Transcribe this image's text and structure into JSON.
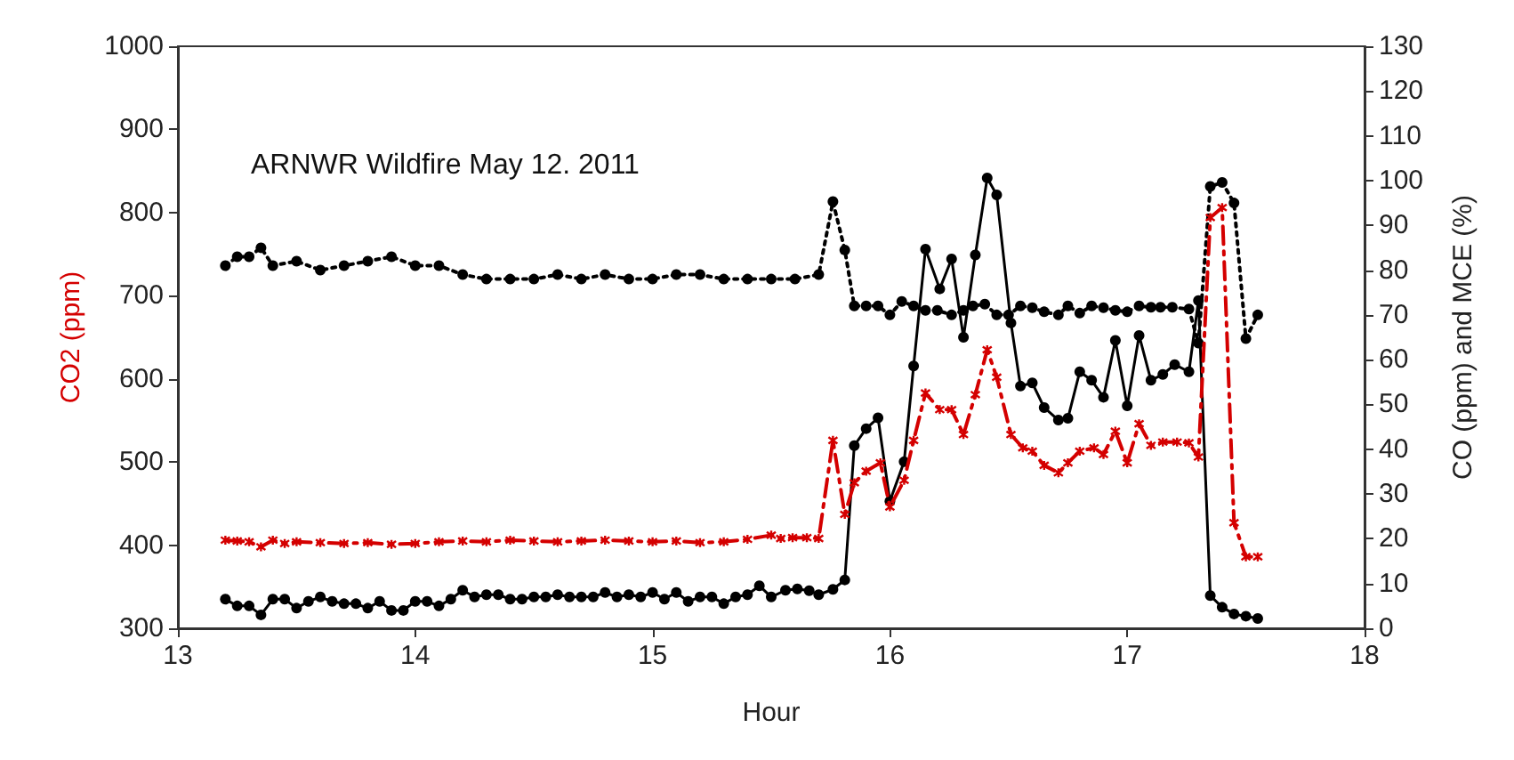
{
  "chart_data": {
    "type": "line",
    "title": "ARNWR Wildfire May 12. 2011",
    "xlabel": "Hour",
    "ylabel": "CO2 (ppm)",
    "y2label": "CO (ppm) and MCE (%)",
    "xlim": [
      13,
      18
    ],
    "xticks": [
      13,
      14,
      15,
      16,
      17,
      18
    ],
    "ylim": [
      300,
      1000
    ],
    "yticks": [
      300,
      400,
      500,
      600,
      700,
      800,
      900,
      1000
    ],
    "y2lim": [
      0,
      130
    ],
    "y2ticks": [
      0,
      10,
      20,
      30,
      40,
      50,
      60,
      70,
      80,
      90,
      100,
      110,
      120,
      130
    ],
    "grid": false,
    "series": [
      {
        "color": "#d40000",
        "marker": "cross",
        "line_style": "dashed",
        "x": [
          13.2,
          13.25,
          13.3,
          13.35,
          13.4,
          13.45,
          13.5,
          13.6,
          13.7,
          13.8,
          13.9,
          14.0,
          14.1,
          14.2,
          14.3,
          14.4,
          14.5,
          14.6,
          14.7,
          14.8,
          14.9,
          15.0,
          15.1,
          15.2,
          15.3,
          15.4,
          15.5,
          15.54,
          15.59,
          15.65,
          15.7,
          15.76,
          15.81,
          15.85,
          15.9,
          15.96,
          16.0,
          16.06,
          16.1,
          16.15,
          16.21,
          16.26,
          16.31,
          16.36,
          16.41,
          16.45,
          16.51,
          16.56,
          16.6,
          16.65,
          16.71,
          16.75,
          16.8,
          16.86,
          16.9,
          16.95,
          17.0,
          17.05,
          17.1,
          17.15,
          17.21,
          17.26,
          17.3,
          17.35,
          17.4,
          17.45,
          17.5,
          17.55
        ],
        "values": [
          406,
          405,
          404,
          398,
          406,
          402,
          404,
          403,
          402,
          403,
          401,
          402,
          404,
          405,
          404,
          406,
          405,
          404,
          405,
          406,
          405,
          404,
          405,
          403,
          404,
          407,
          412,
          408,
          409,
          409,
          408,
          526,
          437,
          475,
          489,
          499,
          446,
          478,
          526,
          583,
          563,
          563,
          533,
          581,
          635,
          602,
          533,
          517,
          513,
          496,
          487,
          499,
          513,
          517,
          509,
          537,
          499,
          546,
          520,
          524,
          524,
          523,
          506,
          794,
          806,
          427,
          386,
          386
        ]
      },
      {
        "color": "#000000",
        "marker": "circle",
        "line_style": "solid",
        "axis": "y2",
        "x": [
          13.2,
          13.25,
          13.3,
          13.35,
          13.4,
          13.45,
          13.5,
          13.55,
          13.6,
          13.65,
          13.7,
          13.75,
          13.8,
          13.85,
          13.9,
          13.95,
          14.0,
          14.05,
          14.1,
          14.15,
          14.2,
          14.25,
          14.3,
          14.35,
          14.4,
          14.45,
          14.5,
          14.55,
          14.6,
          14.65,
          14.7,
          14.75,
          14.8,
          14.85,
          14.9,
          14.95,
          15.0,
          15.05,
          15.1,
          15.15,
          15.2,
          15.25,
          15.3,
          15.35,
          15.4,
          15.45,
          15.5,
          15.56,
          15.61,
          15.66,
          15.7,
          15.76,
          15.81,
          15.85,
          15.9,
          15.95,
          16.0,
          16.06,
          16.1,
          16.15,
          16.21,
          16.26,
          16.31,
          16.36,
          16.41,
          16.45,
          16.51,
          16.55,
          16.6,
          16.65,
          16.71,
          16.75,
          16.8,
          16.85,
          16.9,
          16.95,
          17.0,
          17.05,
          17.1,
          17.15,
          17.2,
          17.26,
          17.3,
          17.35,
          17.4,
          17.45,
          17.5,
          17.55
        ],
        "values": [
          6.5,
          5,
          5,
          3,
          6.5,
          6.5,
          4.5,
          6,
          7,
          6,
          5.5,
          5.5,
          4.5,
          6,
          4,
          4,
          6,
          6,
          5,
          6.5,
          8.5,
          7,
          7.5,
          7.5,
          6.5,
          6.5,
          7,
          7,
          7.5,
          7,
          7,
          7,
          8,
          7,
          7.5,
          7,
          8,
          6.5,
          8,
          6,
          7,
          7,
          5.5,
          7,
          7.5,
          9.5,
          7,
          8.5,
          8.8,
          8.4,
          7.5,
          8.7,
          10.8,
          40.8,
          44.6,
          47,
          28.4,
          37.2,
          58.6,
          84.7,
          75.8,
          82.5,
          65,
          83.4,
          100.6,
          96.8,
          68.2,
          54.1,
          54.8,
          49.3,
          46.5,
          46.9,
          57.3,
          55.4,
          51.6,
          64.3,
          49.7,
          65.4,
          55.4,
          56.7,
          58.9,
          57.3,
          73.2,
          7.3,
          4.7,
          3.2,
          2.7,
          2.2
        ]
      },
      {
        "color": "#000000",
        "marker": "circle",
        "line_style": "dotted",
        "axis": "y2",
        "x": [
          13.2,
          13.25,
          13.3,
          13.35,
          13.4,
          13.5,
          13.6,
          13.7,
          13.8,
          13.9,
          14.0,
          14.1,
          14.2,
          14.3,
          14.4,
          14.5,
          14.6,
          14.7,
          14.8,
          14.9,
          15.0,
          15.1,
          15.2,
          15.3,
          15.4,
          15.5,
          15.6,
          15.7,
          15.76,
          15.81,
          15.85,
          15.9,
          15.95,
          16.0,
          16.05,
          16.1,
          16.15,
          16.2,
          16.26,
          16.31,
          16.35,
          16.4,
          16.45,
          16.5,
          16.55,
          16.6,
          16.65,
          16.71,
          16.75,
          16.8,
          16.85,
          16.9,
          16.95,
          17.0,
          17.05,
          17.1,
          17.14,
          17.19,
          17.26,
          17.3,
          17.35,
          17.4,
          17.45,
          17.5,
          17.55
        ],
        "values": [
          81,
          83,
          83,
          85,
          81,
          82,
          80,
          81,
          82,
          83,
          81,
          81,
          79,
          78,
          78,
          78,
          79,
          78,
          79,
          78,
          78,
          79,
          79,
          78,
          78,
          78,
          78,
          79,
          95.3,
          84.5,
          72,
          72,
          72,
          70,
          73,
          72,
          71,
          71,
          70,
          71,
          72,
          72.4,
          70,
          70,
          72,
          71.6,
          70.7,
          70,
          72,
          70.4,
          72,
          71.6,
          71,
          70.7,
          72,
          71.7,
          71.7,
          71.7,
          71.3,
          63.7,
          98.7,
          99.6,
          95,
          64.7,
          70
        ]
      }
    ]
  }
}
